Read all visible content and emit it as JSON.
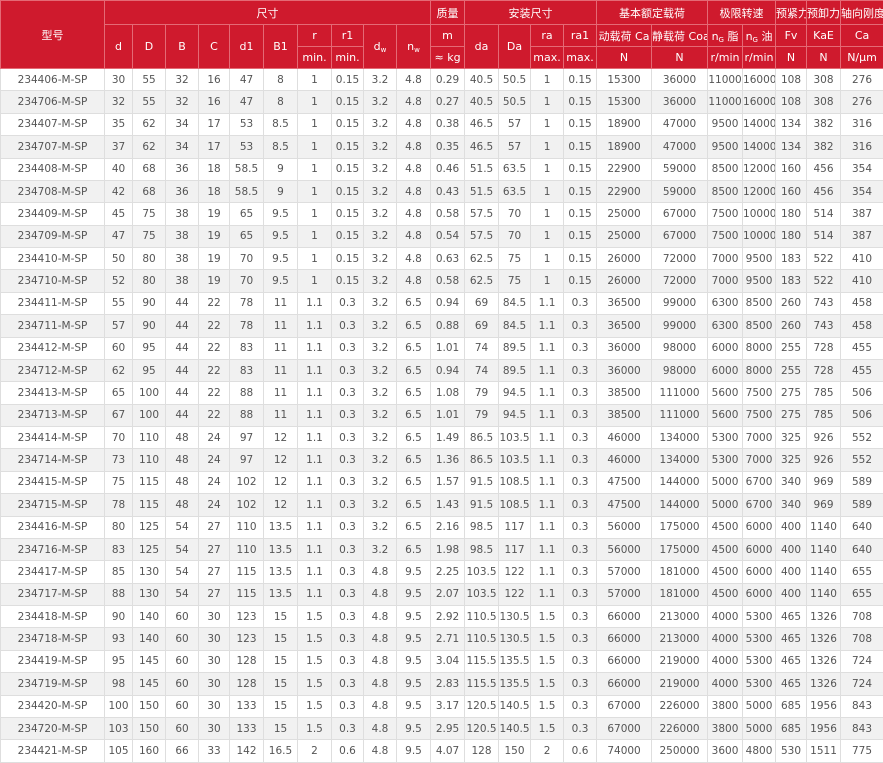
{
  "header": {
    "model": "型号",
    "groups": [
      "尺寸",
      "质量",
      "安装尺寸",
      "基本额定载荷",
      "极限转速",
      "预紧力",
      "预卸力",
      "轴向刚度"
    ],
    "columns": [
      {
        "label": "d"
      },
      {
        "label": "D"
      },
      {
        "label": "B"
      },
      {
        "label": "C"
      },
      {
        "label": "d1"
      },
      {
        "label": "B1"
      },
      {
        "label": "r",
        "unit": "min."
      },
      {
        "label": "r1",
        "unit": "min."
      },
      {
        "label": "d",
        "sub": "w"
      },
      {
        "label": "n",
        "sub": "w"
      },
      {
        "label": "m",
        "unit": "≈ kg"
      },
      {
        "label": "da"
      },
      {
        "label": "Da"
      },
      {
        "label": "ra",
        "unit": "max."
      },
      {
        "label": "ra1",
        "unit": "max."
      },
      {
        "label": "动载荷 Ca",
        "unit": "N"
      },
      {
        "label": "静载荷 Coa",
        "unit": "N"
      },
      {
        "label": "n",
        "sub": "G",
        "suffix": "脂",
        "unit": "r/min"
      },
      {
        "label": "n",
        "sub": "G",
        "suffix": "油",
        "unit": "r/min"
      },
      {
        "label": "Fv",
        "unit": "N"
      },
      {
        "label": "KaE",
        "unit": "N"
      },
      {
        "label": "Ca",
        "unit": "N/μm"
      }
    ]
  },
  "table": {
    "rows": [
      [
        "234406-M-SP",
        30,
        55,
        32,
        16,
        47,
        8,
        1,
        0.15,
        3.2,
        4.8,
        0.29,
        40.5,
        50.5,
        1,
        0.15,
        15300,
        36000,
        11000,
        16000,
        108,
        308,
        276
      ],
      [
        "234706-M-SP",
        32,
        55,
        32,
        16,
        47,
        8,
        1,
        0.15,
        3.2,
        4.8,
        0.27,
        40.5,
        50.5,
        1,
        0.15,
        15300,
        36000,
        11000,
        16000,
        108,
        308,
        276
      ],
      [
        "234407-M-SP",
        35,
        62,
        34,
        17,
        53,
        8.5,
        1,
        0.15,
        3.2,
        4.8,
        0.38,
        46.5,
        57,
        1,
        0.15,
        18900,
        47000,
        9500,
        14000,
        134,
        382,
        316
      ],
      [
        "234707-M-SP",
        37,
        62,
        34,
        17,
        53,
        8.5,
        1,
        0.15,
        3.2,
        4.8,
        0.35,
        46.5,
        57,
        1,
        0.15,
        18900,
        47000,
        9500,
        14000,
        134,
        382,
        316
      ],
      [
        "234408-M-SP",
        40,
        68,
        36,
        18,
        58.5,
        9,
        1,
        0.15,
        3.2,
        4.8,
        0.46,
        51.5,
        63.5,
        1,
        0.15,
        22900,
        59000,
        8500,
        12000,
        160,
        456,
        354
      ],
      [
        "234708-M-SP",
        42,
        68,
        36,
        18,
        58.5,
        9,
        1,
        0.15,
        3.2,
        4.8,
        0.43,
        51.5,
        63.5,
        1,
        0.15,
        22900,
        59000,
        8500,
        12000,
        160,
        456,
        354
      ],
      [
        "234409-M-SP",
        45,
        75,
        38,
        19,
        65,
        9.5,
        1,
        0.15,
        3.2,
        4.8,
        0.58,
        57.5,
        70,
        1,
        0.15,
        25000,
        67000,
        7500,
        10000,
        180,
        514,
        387
      ],
      [
        "234709-M-SP",
        47,
        75,
        38,
        19,
        65,
        9.5,
        1,
        0.15,
        3.2,
        4.8,
        0.54,
        57.5,
        70,
        1,
        0.15,
        25000,
        67000,
        7500,
        10000,
        180,
        514,
        387
      ],
      [
        "234410-M-SP",
        50,
        80,
        38,
        19,
        70,
        9.5,
        1,
        0.15,
        3.2,
        4.8,
        0.63,
        62.5,
        75,
        1,
        0.15,
        26000,
        72000,
        7000,
        9500,
        183,
        522,
        410
      ],
      [
        "234710-M-SP",
        52,
        80,
        38,
        19,
        70,
        9.5,
        1,
        0.15,
        3.2,
        4.8,
        0.58,
        62.5,
        75,
        1,
        0.15,
        26000,
        72000,
        7000,
        9500,
        183,
        522,
        410
      ],
      [
        "234411-M-SP",
        55,
        90,
        44,
        22,
        78,
        11,
        1.1,
        0.3,
        3.2,
        6.5,
        0.94,
        69,
        84.5,
        1.1,
        0.3,
        36500,
        99000,
        6300,
        8500,
        260,
        743,
        458
      ],
      [
        "234711-M-SP",
        57,
        90,
        44,
        22,
        78,
        11,
        1.1,
        0.3,
        3.2,
        6.5,
        0.88,
        69,
        84.5,
        1.1,
        0.3,
        36500,
        99000,
        6300,
        8500,
        260,
        743,
        458
      ],
      [
        "234412-M-SP",
        60,
        95,
        44,
        22,
        83,
        11,
        1.1,
        0.3,
        3.2,
        6.5,
        1.01,
        74,
        89.5,
        1.1,
        0.3,
        36000,
        98000,
        6000,
        8000,
        255,
        728,
        455
      ],
      [
        "234712-M-SP",
        62,
        95,
        44,
        22,
        83,
        11,
        1.1,
        0.3,
        3.2,
        6.5,
        0.94,
        74,
        89.5,
        1.1,
        0.3,
        36000,
        98000,
        6000,
        8000,
        255,
        728,
        455
      ],
      [
        "234413-M-SP",
        65,
        100,
        44,
        22,
        88,
        11,
        1.1,
        0.3,
        3.2,
        6.5,
        1.08,
        79,
        94.5,
        1.1,
        0.3,
        38500,
        111000,
        5600,
        7500,
        275,
        785,
        506
      ],
      [
        "234713-M-SP",
        67,
        100,
        44,
        22,
        88,
        11,
        1.1,
        0.3,
        3.2,
        6.5,
        1.01,
        79,
        94.5,
        1.1,
        0.3,
        38500,
        111000,
        5600,
        7500,
        275,
        785,
        506
      ],
      [
        "234414-M-SP",
        70,
        110,
        48,
        24,
        97,
        12,
        1.1,
        0.3,
        3.2,
        6.5,
        1.49,
        86.5,
        103.5,
        1.1,
        0.3,
        46000,
        134000,
        5300,
        7000,
        325,
        926,
        552
      ],
      [
        "234714-M-SP",
        73,
        110,
        48,
        24,
        97,
        12,
        1.1,
        0.3,
        3.2,
        6.5,
        1.36,
        86.5,
        103.5,
        1.1,
        0.3,
        46000,
        134000,
        5300,
        7000,
        325,
        926,
        552
      ],
      [
        "234415-M-SP",
        75,
        115,
        48,
        24,
        102,
        12,
        1.1,
        0.3,
        3.2,
        6.5,
        1.57,
        91.5,
        108.5,
        1.1,
        0.3,
        47500,
        144000,
        5000,
        6700,
        340,
        969,
        589
      ],
      [
        "234715-M-SP",
        78,
        115,
        48,
        24,
        102,
        12,
        1.1,
        0.3,
        3.2,
        6.5,
        1.43,
        91.5,
        108.5,
        1.1,
        0.3,
        47500,
        144000,
        5000,
        6700,
        340,
        969,
        589
      ],
      [
        "234416-M-SP",
        80,
        125,
        54,
        27,
        110,
        13.5,
        1.1,
        0.3,
        3.2,
        6.5,
        2.16,
        98.5,
        117,
        1.1,
        0.3,
        56000,
        175000,
        4500,
        6000,
        400,
        1140,
        640
      ],
      [
        "234716-M-SP",
        83,
        125,
        54,
        27,
        110,
        13.5,
        1.1,
        0.3,
        3.2,
        6.5,
        1.98,
        98.5,
        117,
        1.1,
        0.3,
        56000,
        175000,
        4500,
        6000,
        400,
        1140,
        640
      ],
      [
        "234417-M-SP",
        85,
        130,
        54,
        27,
        115,
        13.5,
        1.1,
        0.3,
        4.8,
        9.5,
        2.25,
        103.5,
        122,
        1.1,
        0.3,
        57000,
        181000,
        4500,
        6000,
        400,
        1140,
        655
      ],
      [
        "234717-M-SP",
        88,
        130,
        54,
        27,
        115,
        13.5,
        1.1,
        0.3,
        4.8,
        9.5,
        2.07,
        103.5,
        122,
        1.1,
        0.3,
        57000,
        181000,
        4500,
        6000,
        400,
        1140,
        655
      ],
      [
        "234418-M-SP",
        90,
        140,
        60,
        30,
        123,
        15,
        1.5,
        0.3,
        4.8,
        9.5,
        2.92,
        110.5,
        130.5,
        1.5,
        0.3,
        66000,
        213000,
        4000,
        5300,
        465,
        1326,
        708
      ],
      [
        "234718-M-SP",
        93,
        140,
        60,
        30,
        123,
        15,
        1.5,
        0.3,
        4.8,
        9.5,
        2.71,
        110.5,
        130.5,
        1.5,
        0.3,
        66000,
        213000,
        4000,
        5300,
        465,
        1326,
        708
      ],
      [
        "234419-M-SP",
        95,
        145,
        60,
        30,
        128,
        15,
        1.5,
        0.3,
        4.8,
        9.5,
        3.04,
        115.5,
        135.5,
        1.5,
        0.3,
        66000,
        219000,
        4000,
        5300,
        465,
        1326,
        724
      ],
      [
        "234719-M-SP",
        98,
        145,
        60,
        30,
        128,
        15,
        1.5,
        0.3,
        4.8,
        9.5,
        2.83,
        115.5,
        135.5,
        1.5,
        0.3,
        66000,
        219000,
        4000,
        5300,
        465,
        1326,
        724
      ],
      [
        "234420-M-SP",
        100,
        150,
        60,
        30,
        133,
        15,
        1.5,
        0.3,
        4.8,
        9.5,
        3.17,
        120.5,
        140.5,
        1.5,
        0.3,
        67000,
        226000,
        3800,
        5000,
        685,
        1956,
        843
      ],
      [
        "234720-M-SP",
        103,
        150,
        60,
        30,
        133,
        15,
        1.5,
        0.3,
        4.8,
        9.5,
        2.95,
        120.5,
        140.5,
        1.5,
        0.3,
        67000,
        226000,
        3800,
        5000,
        685,
        1956,
        843
      ],
      [
        "234421-M-SP",
        105,
        160,
        66,
        33,
        142,
        16.5,
        2,
        0.6,
        4.8,
        9.5,
        4.07,
        128,
        150,
        2,
        0.6,
        74000,
        250000,
        3600,
        4800,
        530,
        1511,
        775
      ]
    ]
  }
}
